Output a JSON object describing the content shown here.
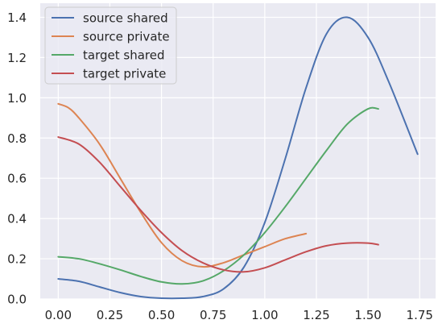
{
  "chart_data": {
    "type": "line",
    "xlim": [
      -0.087,
      1.827
    ],
    "ylim": [
      0.0,
      1.47
    ],
    "x_ticks": [
      0.0,
      0.25,
      0.5,
      0.75,
      1.0,
      1.25,
      1.5,
      1.75
    ],
    "x_tick_labels": [
      "0.00",
      "0.25",
      "0.50",
      "0.75",
      "1.00",
      "1.25",
      "1.50",
      "1.75"
    ],
    "y_ticks": [
      0.0,
      0.2,
      0.4,
      0.6,
      0.8,
      1.0,
      1.2,
      1.4
    ],
    "y_tick_labels": [
      "0.0",
      "0.2",
      "0.4",
      "0.6",
      "0.8",
      "1.0",
      "1.2",
      "1.4"
    ],
    "grid": true,
    "background": "#eaeaf2",
    "legend_position": "top-left",
    "series": [
      {
        "name": "source shared",
        "color": "#4c72b0",
        "x": [
          0.0,
          0.1,
          0.2,
          0.3,
          0.4,
          0.5,
          0.6,
          0.7,
          0.8,
          0.9,
          1.0,
          1.1,
          1.2,
          1.3,
          1.4,
          1.5,
          1.6,
          1.74
        ],
        "y": [
          0.1,
          0.088,
          0.06,
          0.032,
          0.012,
          0.004,
          0.004,
          0.012,
          0.05,
          0.16,
          0.38,
          0.7,
          1.05,
          1.32,
          1.4,
          1.3,
          1.08,
          0.72
        ]
      },
      {
        "name": "source private",
        "color": "#dd8452",
        "x": [
          0.0,
          0.05,
          0.1,
          0.2,
          0.3,
          0.4,
          0.5,
          0.6,
          0.7,
          0.8,
          0.9,
          1.0,
          1.1,
          1.2
        ],
        "y": [
          0.97,
          0.95,
          0.9,
          0.77,
          0.6,
          0.43,
          0.28,
          0.19,
          0.16,
          0.18,
          0.22,
          0.26,
          0.3,
          0.325
        ]
      },
      {
        "name": "target shared",
        "color": "#55a868",
        "x": [
          0.0,
          0.1,
          0.2,
          0.3,
          0.4,
          0.5,
          0.6,
          0.7,
          0.8,
          0.9,
          1.0,
          1.1,
          1.2,
          1.3,
          1.4,
          1.5,
          1.55
        ],
        "y": [
          0.21,
          0.2,
          0.175,
          0.145,
          0.112,
          0.085,
          0.075,
          0.09,
          0.14,
          0.22,
          0.33,
          0.46,
          0.6,
          0.74,
          0.87,
          0.945,
          0.945
        ]
      },
      {
        "name": "target private",
        "color": "#c44e52",
        "x": [
          0.0,
          0.1,
          0.2,
          0.3,
          0.4,
          0.5,
          0.6,
          0.7,
          0.8,
          0.9,
          1.0,
          1.1,
          1.2,
          1.3,
          1.4,
          1.5,
          1.55
        ],
        "y": [
          0.805,
          0.77,
          0.68,
          0.56,
          0.44,
          0.33,
          0.24,
          0.18,
          0.145,
          0.135,
          0.155,
          0.195,
          0.235,
          0.265,
          0.278,
          0.278,
          0.27
        ]
      }
    ]
  }
}
